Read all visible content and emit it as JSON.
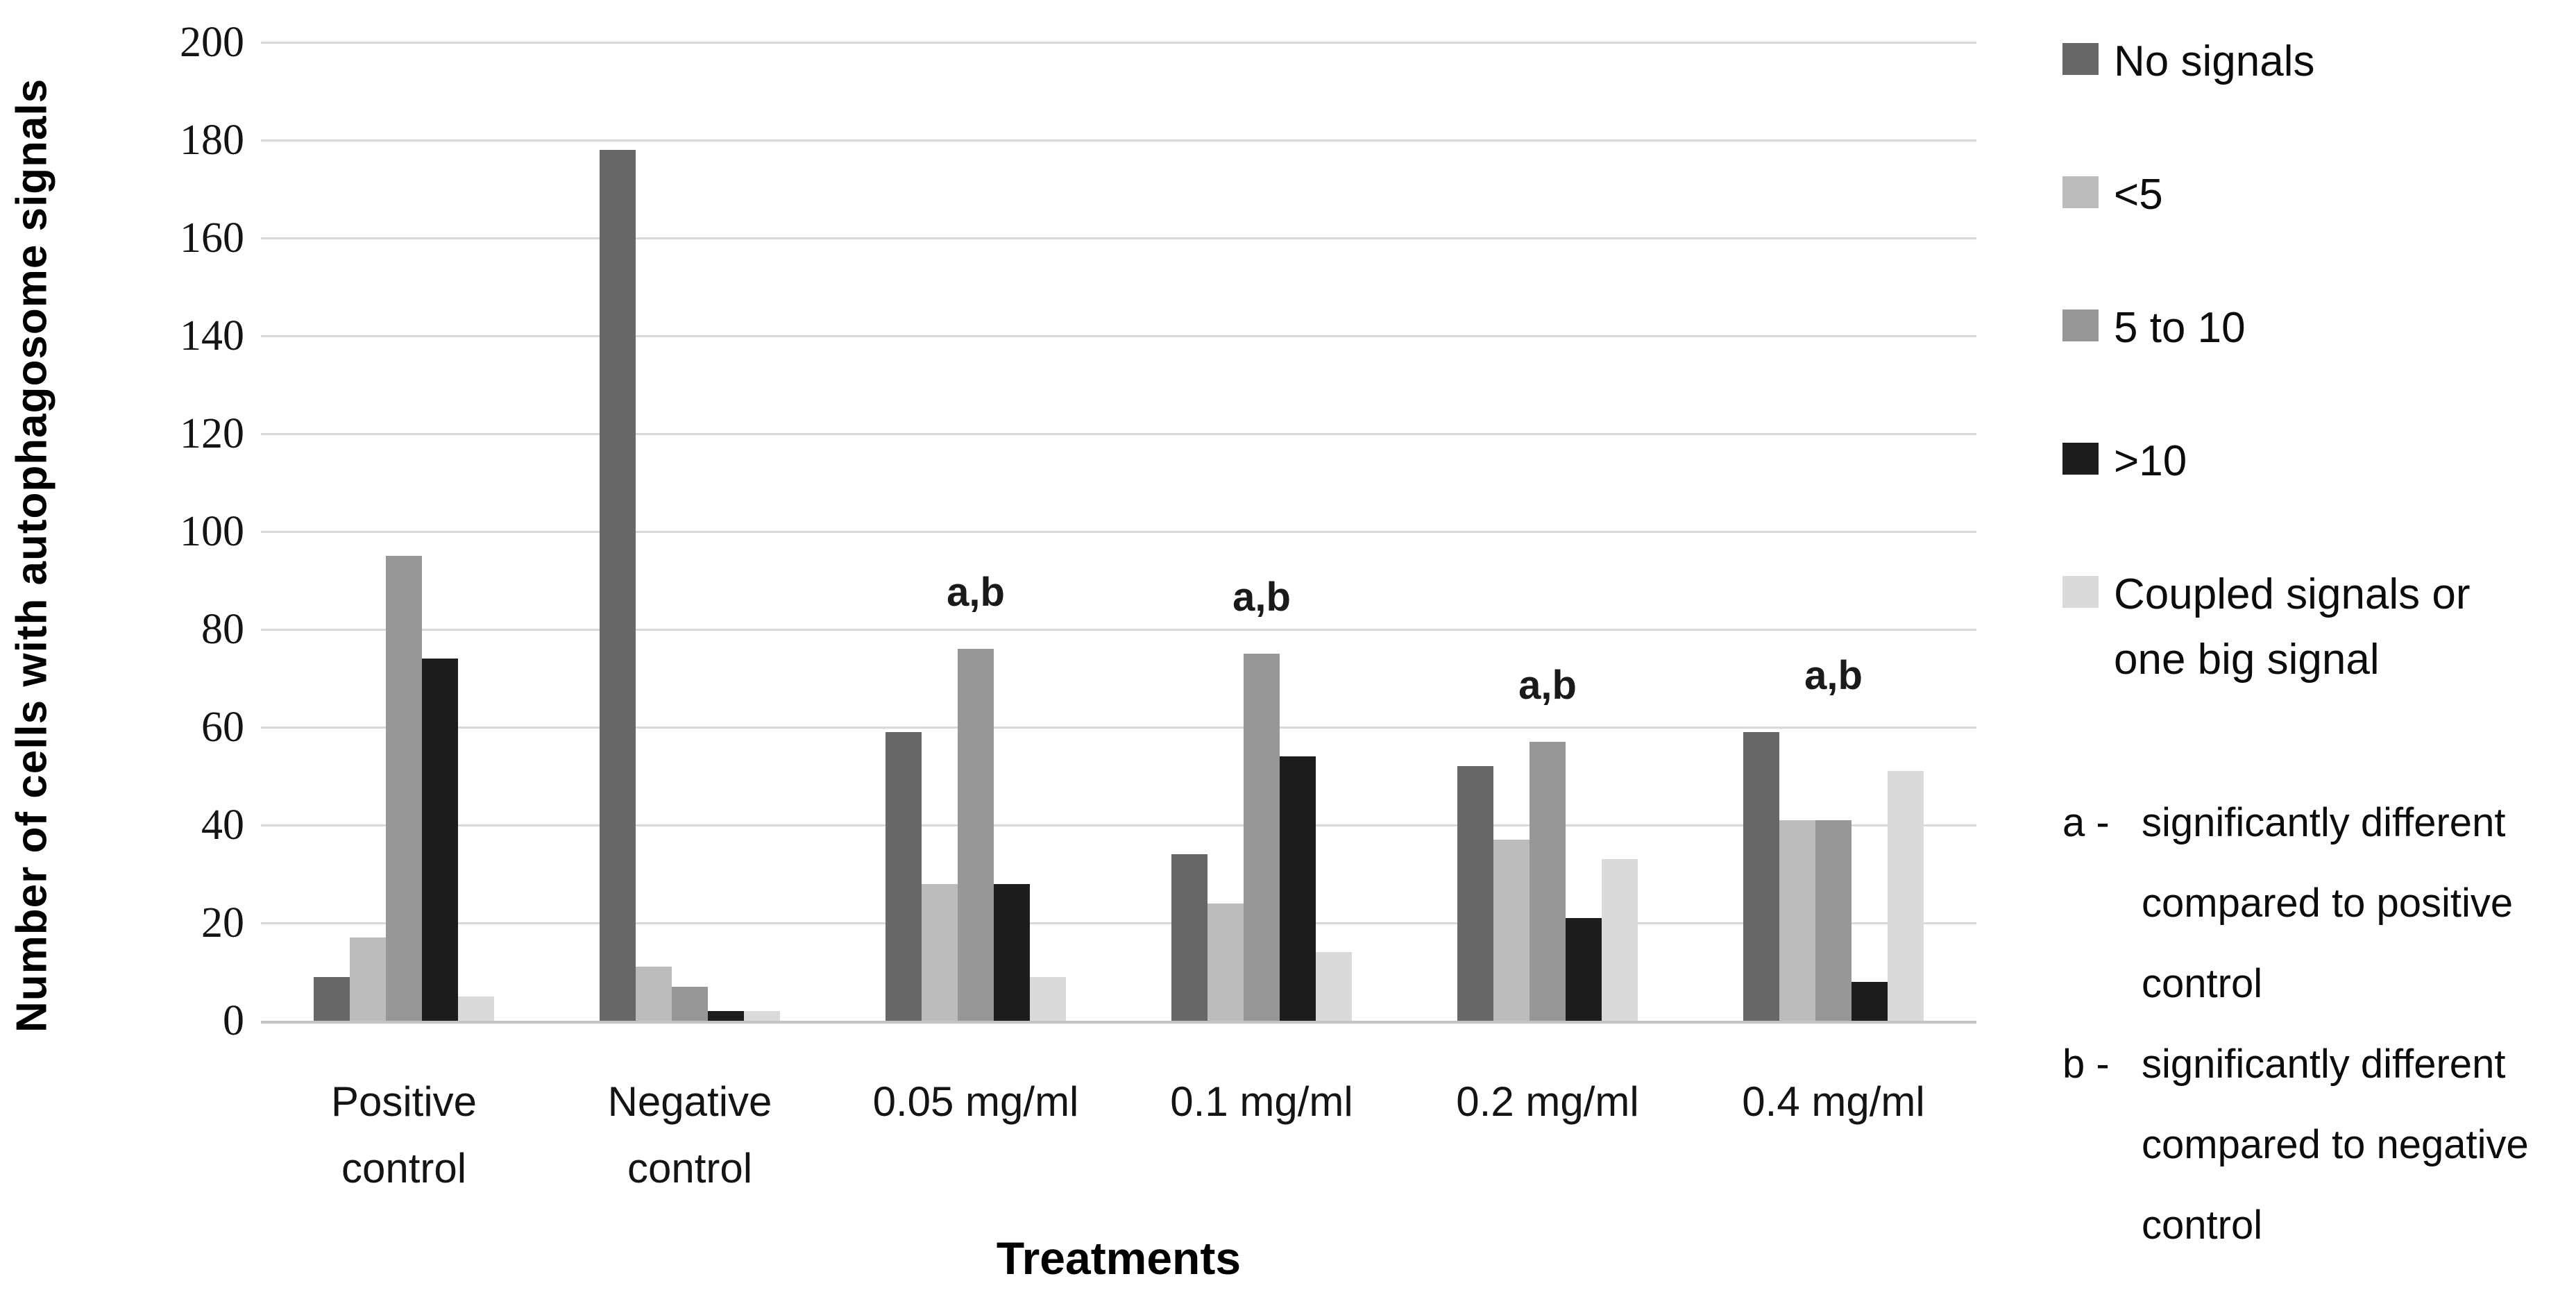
{
  "chart_data": {
    "type": "bar",
    "title": "",
    "xlabel": "Treatments",
    "ylabel": "Number of cells with autophagosome signals",
    "ylim": [
      0,
      200
    ],
    "ytick_step": 20,
    "yticks": [
      0,
      20,
      40,
      60,
      80,
      100,
      120,
      140,
      160,
      180,
      200
    ],
    "grid": true,
    "legend_position": "right",
    "categories": [
      "Positive control",
      "Negative control",
      "0.05 mg/ml",
      "0.1 mg/ml",
      "0.2 mg/ml",
      "0.4 mg/ml"
    ],
    "category_lines": [
      [
        "Positive",
        "control"
      ],
      [
        "Negative",
        "control"
      ],
      [
        "0.05 mg/ml"
      ],
      [
        "0.1 mg/ml"
      ],
      [
        "0.2 mg/ml"
      ],
      [
        "0.4 mg/ml"
      ]
    ],
    "category_annotations": [
      "",
      "",
      "a,b",
      "a,b",
      "a,b",
      "a,b"
    ],
    "series": [
      {
        "name": "No signals",
        "name_lines": [
          "No signals"
        ],
        "color": "#676767",
        "values": [
          9,
          178,
          59,
          34,
          52,
          59
        ]
      },
      {
        "name": "<5",
        "name_lines": [
          "<5"
        ],
        "color": "#bcbcbc",
        "values": [
          17,
          11,
          28,
          24,
          37,
          41
        ]
      },
      {
        "name": "5 to 10",
        "name_lines": [
          "5 to 10"
        ],
        "color": "#979797",
        "values": [
          95,
          7,
          76,
          75,
          57,
          41
        ]
      },
      {
        "name": ">10",
        "name_lines": [
          ">10"
        ],
        "color": "#1d1d1d",
        "values": [
          74,
          2,
          28,
          54,
          21,
          8
        ]
      },
      {
        "name": "Coupled signals or one big signal",
        "name_lines": [
          "Coupled signals or",
          "one big signal"
        ],
        "color": "#dadada",
        "values": [
          5,
          2,
          9,
          14,
          33,
          51
        ]
      }
    ],
    "footnotes": [
      {
        "label": "a",
        "text": "significantly different compared to positive control"
      },
      {
        "label": "b",
        "text": "significantly different compared to negative control"
      }
    ]
  }
}
